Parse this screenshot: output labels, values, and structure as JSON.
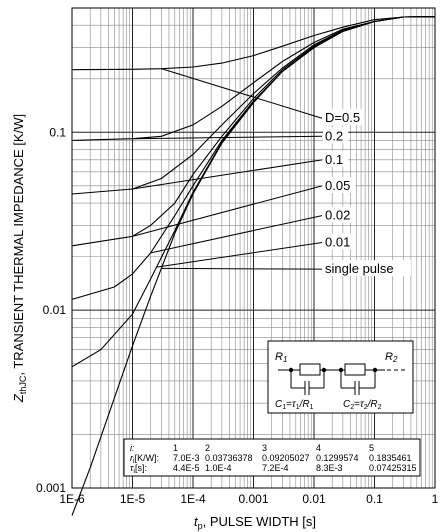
{
  "chart_data": {
    "type": "line",
    "title": "",
    "xlabel_var": "t",
    "xlabel_sub": "p",
    "xlabel_text": ", PULSE WIDTH [s]",
    "ylabel_var": "Z",
    "ylabel_sub": "thJC",
    "ylabel_text": ", TRANSIENT THERMAL IMPEDANCE [K/W]",
    "x_scale": "log",
    "y_scale": "log",
    "xlim": [
      1e-06,
      1
    ],
    "ylim": [
      0.001,
      0.5
    ],
    "x_ticks": [
      {
        "value": 1e-06,
        "label": "1E-6"
      },
      {
        "value": 1e-05,
        "label": "1E-5"
      },
      {
        "value": 0.0001,
        "label": "1E-4"
      },
      {
        "value": 0.001,
        "label": "0.001"
      },
      {
        "value": 0.01,
        "label": "0.01"
      },
      {
        "value": 0.1,
        "label": "0.1"
      },
      {
        "value": 1,
        "label": "1"
      }
    ],
    "y_ticks": [
      {
        "value": 0.001,
        "label": "0.001"
      },
      {
        "value": 0.01,
        "label": "0.01"
      },
      {
        "value": 0.1,
        "label": "0.1"
      }
    ],
    "grid": true,
    "series": [
      {
        "name": "D=0.5",
        "label_value": 0.12,
        "label_pointer_x": 3e-05,
        "points": [
          [
            1e-06,
            0.225
          ],
          [
            1e-05,
            0.226
          ],
          [
            3e-05,
            0.228
          ],
          [
            0.0001,
            0.233
          ],
          [
            0.0003,
            0.245
          ],
          [
            0.001,
            0.27
          ],
          [
            0.003,
            0.305
          ],
          [
            0.01,
            0.35
          ],
          [
            0.03,
            0.39
          ],
          [
            0.1,
            0.43
          ],
          [
            0.3,
            0.445
          ],
          [
            1,
            0.447
          ]
        ]
      },
      {
        "name": "0.2",
        "label_value": 0.095,
        "label_pointer_x": 1e-05,
        "points": [
          [
            1e-06,
            0.09
          ],
          [
            1e-05,
            0.092
          ],
          [
            3e-05,
            0.095
          ],
          [
            0.0001,
            0.11
          ],
          [
            0.0003,
            0.14
          ],
          [
            0.001,
            0.19
          ],
          [
            0.003,
            0.25
          ],
          [
            0.01,
            0.32
          ],
          [
            0.03,
            0.38
          ],
          [
            0.1,
            0.42
          ],
          [
            0.3,
            0.445
          ],
          [
            1,
            0.447
          ]
        ]
      },
      {
        "name": "0.1",
        "label_value": 0.07,
        "label_pointer_x": 1e-05,
        "points": [
          [
            1e-06,
            0.045
          ],
          [
            1e-05,
            0.048
          ],
          [
            3e-05,
            0.055
          ],
          [
            0.0001,
            0.075
          ],
          [
            0.0003,
            0.11
          ],
          [
            0.001,
            0.165
          ],
          [
            0.003,
            0.23
          ],
          [
            0.01,
            0.31
          ],
          [
            0.03,
            0.375
          ],
          [
            0.1,
            0.42
          ],
          [
            0.3,
            0.445
          ],
          [
            1,
            0.447
          ]
        ]
      },
      {
        "name": "0.05",
        "label_value": 0.05,
        "label_pointer_x": 1e-05,
        "points": [
          [
            1e-06,
            0.023
          ],
          [
            1e-05,
            0.026
          ],
          [
            2e-05,
            0.03
          ],
          [
            5e-05,
            0.04
          ],
          [
            0.0001,
            0.058
          ],
          [
            0.0003,
            0.095
          ],
          [
            0.001,
            0.155
          ],
          [
            0.003,
            0.225
          ],
          [
            0.01,
            0.305
          ],
          [
            0.03,
            0.375
          ],
          [
            0.1,
            0.42
          ],
          [
            0.3,
            0.445
          ],
          [
            1,
            0.447
          ]
        ]
      },
      {
        "name": "0.02",
        "label_value": 0.034,
        "label_pointer_x": 2e-05,
        "points": [
          [
            1e-06,
            0.0115
          ],
          [
            5e-06,
            0.0135
          ],
          [
            1e-05,
            0.016
          ],
          [
            2e-05,
            0.021
          ],
          [
            5e-05,
            0.034
          ],
          [
            0.0001,
            0.05
          ],
          [
            0.0003,
            0.09
          ],
          [
            0.001,
            0.15
          ],
          [
            0.003,
            0.22
          ],
          [
            0.01,
            0.3
          ],
          [
            0.03,
            0.37
          ],
          [
            0.1,
            0.42
          ],
          [
            0.3,
            0.445
          ],
          [
            1,
            0.447
          ]
        ]
      },
      {
        "name": "0.01",
        "label_value": 0.024,
        "label_pointer_x": 2.5e-05,
        "points": [
          [
            1e-06,
            0.0048
          ],
          [
            3e-06,
            0.006
          ],
          [
            1e-05,
            0.0095
          ],
          [
            2e-05,
            0.015
          ],
          [
            5e-05,
            0.028
          ],
          [
            0.0001,
            0.046
          ],
          [
            0.0003,
            0.088
          ],
          [
            0.001,
            0.148
          ],
          [
            0.003,
            0.22
          ],
          [
            0.01,
            0.3
          ],
          [
            0.03,
            0.37
          ],
          [
            0.1,
            0.42
          ],
          [
            0.3,
            0.445
          ],
          [
            1,
            0.447
          ]
        ]
      },
      {
        "name": "single pulse",
        "label_value": 0.017,
        "label_pointer_x": 3e-05,
        "points": [
          [
            1e-06,
            0.0007
          ],
          [
            2e-06,
            0.0013
          ],
          [
            5e-06,
            0.0032
          ],
          [
            1e-05,
            0.0063
          ],
          [
            2e-05,
            0.012
          ],
          [
            5e-05,
            0.027
          ],
          [
            0.0001,
            0.045
          ],
          [
            0.0003,
            0.087
          ],
          [
            0.001,
            0.147
          ],
          [
            0.003,
            0.22
          ],
          [
            0.01,
            0.3
          ],
          [
            0.03,
            0.37
          ],
          [
            0.1,
            0.42
          ],
          [
            0.3,
            0.445
          ],
          [
            1,
            0.447
          ]
        ]
      }
    ],
    "circuit": {
      "r1": "R",
      "r1_sub": "1",
      "r2": "R",
      "r2_sub": "2",
      "c1_a": "C",
      "c1_a_sub": "1",
      "c1_b": "=",
      "c1_c": "τ",
      "c1_c_sub": "1",
      "c1_d": "/R",
      "c1_d_sub": "1",
      "c2_a": "C",
      "c2_a_sub": "2",
      "c2_b": "=",
      "c2_c": "τ",
      "c2_c_sub": "2",
      "c2_d": "/R",
      "c2_d_sub": "2"
    },
    "parameter_table": {
      "header": [
        "i:",
        "1",
        "2",
        "3",
        "4",
        "5"
      ],
      "rows": [
        {
          "label": "r",
          "label_sub": "i",
          "label_rest": "[K/W]:",
          "values": [
            "7.0E-3",
            "0.03736378",
            "0.09205027",
            "0.1299574",
            "0.1835461"
          ]
        },
        {
          "label": "τ",
          "label_sub": "i",
          "label_rest": "[s]:",
          "values": [
            "4.4E-5",
            "1.0E-4",
            "7.2E-4",
            "8.3E-3",
            "0.07425315"
          ]
        }
      ]
    }
  }
}
